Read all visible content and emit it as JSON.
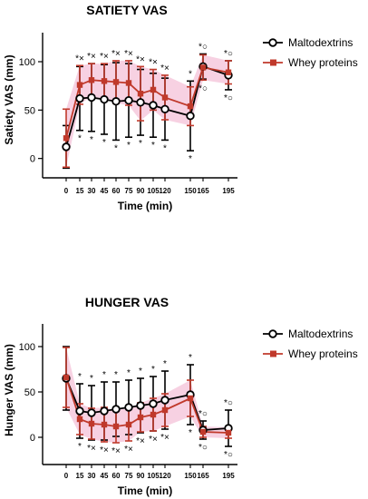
{
  "chart_data": [
    {
      "type": "line",
      "title": "SATIETY VAS",
      "xlabel": "Time (min)",
      "ylabel": "Satiety VAS (mm)",
      "ylim": [
        -20,
        130
      ],
      "yticks": [
        0,
        50,
        100
      ],
      "x": [
        0,
        15,
        30,
        45,
        60,
        75,
        90,
        105,
        120,
        150,
        165,
        195
      ],
      "x_tick_labels": [
        "0",
        "15",
        "30",
        "45",
        "60",
        "75",
        "90",
        "105",
        "120",
        "150",
        "165",
        "195"
      ],
      "legend_position": "top-right",
      "series": [
        {
          "name": "Maltodextrins",
          "marker": "open-circle",
          "color": "#000000",
          "values": [
            12,
            62,
            63,
            61,
            59,
            60,
            58,
            55,
            51,
            44,
            95,
            86
          ],
          "errors": [
            22,
            33,
            35,
            36,
            40,
            38,
            34,
            33,
            32,
            36,
            13,
            15
          ]
        },
        {
          "name": "Whey proteins",
          "marker": "filled-square",
          "color": "#c0392b",
          "band_color": "#f4c2d8",
          "values": [
            21,
            76,
            81,
            80,
            79,
            78,
            67,
            71,
            63,
            54,
            94,
            89
          ],
          "errors": [
            30,
            20,
            17,
            18,
            22,
            23,
            28,
            21,
            23,
            20,
            13,
            12
          ]
        }
      ],
      "annotations": [
        {
          "x": 15,
          "pos": "above",
          "text": "*×"
        },
        {
          "x": 30,
          "pos": "above",
          "text": "*×"
        },
        {
          "x": 45,
          "pos": "above",
          "text": "*×"
        },
        {
          "x": 60,
          "pos": "above",
          "text": "*×"
        },
        {
          "x": 75,
          "pos": "above",
          "text": "*×"
        },
        {
          "x": 90,
          "pos": "above",
          "text": "*×"
        },
        {
          "x": 105,
          "pos": "above",
          "text": "*×"
        },
        {
          "x": 120,
          "pos": "above",
          "text": "*×"
        },
        {
          "x": 150,
          "pos": "above",
          "text": "*"
        },
        {
          "x": 165,
          "pos": "above",
          "text": "*○"
        },
        {
          "x": 195,
          "pos": "above",
          "text": "*○"
        },
        {
          "x": 15,
          "pos": "below",
          "text": "*"
        },
        {
          "x": 30,
          "pos": "below",
          "text": "*"
        },
        {
          "x": 45,
          "pos": "below",
          "text": "*"
        },
        {
          "x": 60,
          "pos": "below",
          "text": "*"
        },
        {
          "x": 75,
          "pos": "below",
          "text": "*"
        },
        {
          "x": 90,
          "pos": "below",
          "text": "*"
        },
        {
          "x": 105,
          "pos": "below",
          "text": "*"
        },
        {
          "x": 120,
          "pos": "below",
          "text": "*"
        },
        {
          "x": 150,
          "pos": "below",
          "text": "*"
        },
        {
          "x": 165,
          "pos": "below",
          "text": "*○"
        },
        {
          "x": 195,
          "pos": "below",
          "text": "*○"
        }
      ]
    },
    {
      "type": "line",
      "title": "HUNGER VAS",
      "xlabel": "Time (min)",
      "ylabel": "Hunger VAS (mm)",
      "ylim": [
        -30,
        125
      ],
      "yticks": [
        0,
        50,
        100
      ],
      "x": [
        0,
        15,
        30,
        45,
        60,
        75,
        90,
        105,
        120,
        150,
        165,
        195
      ],
      "x_tick_labels": [
        "0",
        "15",
        "30",
        "45",
        "60",
        "75",
        "90",
        "105",
        "120",
        "150",
        "165",
        "195"
      ],
      "legend_position": "top-right",
      "series": [
        {
          "name": "Maltodextrins",
          "marker": "open-circle",
          "color": "#000000",
          "values": [
            65,
            29,
            27,
            29,
            31,
            33,
            35,
            37,
            41,
            47,
            8,
            10
          ],
          "errors": [
            35,
            30,
            30,
            32,
            30,
            30,
            30,
            30,
            32,
            33,
            10,
            20
          ]
        },
        {
          "name": "Whey proteins",
          "marker": "filled-square",
          "color": "#c0392b",
          "band_color": "#f4c2d8",
          "values": [
            66,
            20,
            15,
            14,
            12,
            14,
            22,
            25,
            30,
            43,
            6,
            5
          ],
          "errors": [
            33,
            17,
            17,
            19,
            18,
            18,
            16,
            18,
            18,
            20,
            6,
            6
          ]
        }
      ],
      "annotations": [
        {
          "x": 15,
          "pos": "above",
          "text": "*"
        },
        {
          "x": 30,
          "pos": "above",
          "text": "*"
        },
        {
          "x": 45,
          "pos": "above",
          "text": "*"
        },
        {
          "x": 60,
          "pos": "above",
          "text": "*"
        },
        {
          "x": 75,
          "pos": "above",
          "text": "*"
        },
        {
          "x": 90,
          "pos": "above",
          "text": "*"
        },
        {
          "x": 105,
          "pos": "above",
          "text": "*"
        },
        {
          "x": 120,
          "pos": "above",
          "text": "*"
        },
        {
          "x": 150,
          "pos": "above",
          "text": "*"
        },
        {
          "x": 165,
          "pos": "above",
          "text": "*○"
        },
        {
          "x": 195,
          "pos": "above",
          "text": "*○"
        },
        {
          "x": 15,
          "pos": "below",
          "text": "*"
        },
        {
          "x": 30,
          "pos": "below",
          "text": "*×"
        },
        {
          "x": 45,
          "pos": "below",
          "text": "*×"
        },
        {
          "x": 60,
          "pos": "below",
          "text": "*×"
        },
        {
          "x": 75,
          "pos": "below",
          "text": "*×"
        },
        {
          "x": 90,
          "pos": "below",
          "text": "*×"
        },
        {
          "x": 105,
          "pos": "below",
          "text": "*×"
        },
        {
          "x": 120,
          "pos": "below",
          "text": "*×"
        },
        {
          "x": 150,
          "pos": "below",
          "text": "*"
        },
        {
          "x": 165,
          "pos": "below",
          "text": "*○"
        },
        {
          "x": 195,
          "pos": "below",
          "text": "*○"
        }
      ]
    }
  ]
}
